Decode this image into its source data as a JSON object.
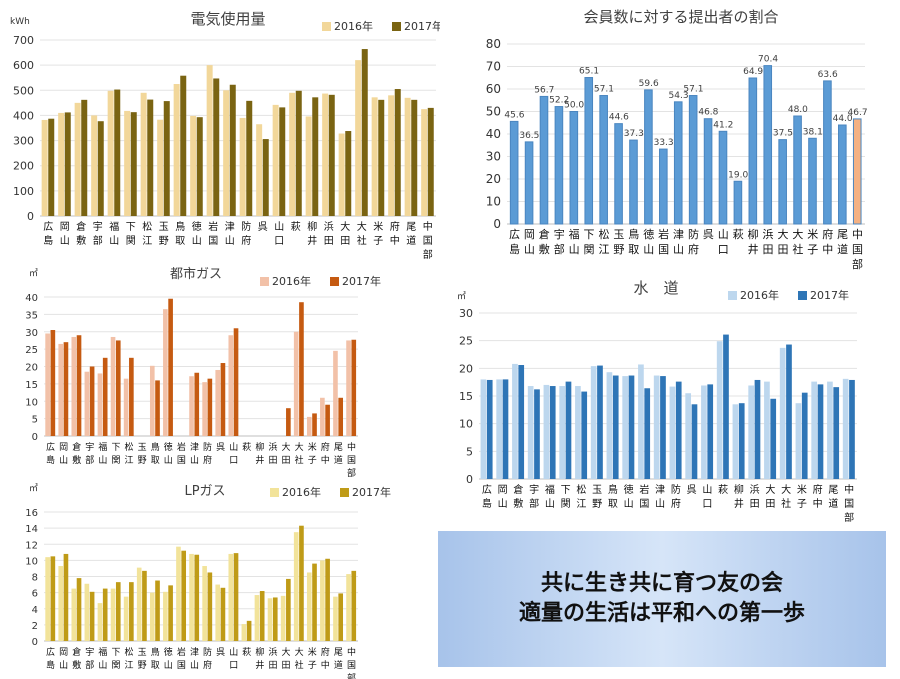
{
  "banner": {
    "line1": "共に生き共に育つ友の会",
    "line2": "適量の生活は平和への第一歩"
  },
  "chart_data": [
    {
      "id": "electricity",
      "type": "bar",
      "title": "電気使用量",
      "unit": "kWh",
      "ylim": [
        0,
        700
      ],
      "ystep": 100,
      "categories": [
        "広島",
        "岡山",
        "倉敷",
        "宇部",
        "福山",
        "下関",
        "松江",
        "玉野",
        "鳥取",
        "徳山",
        "岩国",
        "津山",
        "防府",
        "呉",
        "山口",
        "萩",
        "柳井",
        "浜田",
        "大田",
        "大社",
        "米子",
        "府中",
        "尾道",
        "中国部"
      ],
      "series": [
        {
          "name": "2016年",
          "color": "#f2d79a",
          "values": [
            382,
            410,
            450,
            400,
            498,
            418,
            490,
            383,
            525,
            398,
            600,
            500,
            390,
            365,
            442,
            490,
            396,
            487,
            328,
            620,
            472,
            480,
            470,
            425
          ]
        },
        {
          "name": "2017年",
          "color": "#7a6412",
          "values": [
            387,
            412,
            462,
            377,
            503,
            413,
            463,
            457,
            558,
            393,
            547,
            522,
            458,
            306,
            432,
            498,
            472,
            482,
            338,
            664,
            462,
            505,
            462,
            430
          ]
        }
      ]
    },
    {
      "id": "ratio",
      "type": "bar",
      "title": "会員数に対する提出者の割合",
      "ylim": [
        0,
        80
      ],
      "ystep": 10,
      "categories": [
        "広島",
        "岡山",
        "倉敷",
        "宇部",
        "福山",
        "下関",
        "松江",
        "玉野",
        "鳥取",
        "徳山",
        "岩国",
        "津山",
        "防府",
        "呉",
        "山口",
        "萩",
        "柳井",
        "浜田",
        "大田",
        "大社",
        "米子",
        "府中",
        "尾道",
        "中国部"
      ],
      "labels": [
        "45.6",
        "36.5",
        "56.7",
        "52.2",
        "50.0",
        "65.1",
        "57.1",
        "44.6",
        "37.3",
        "59.6",
        "33.3",
        "54.3",
        "57.1",
        "46.8",
        "41.2",
        "19.0",
        "64.9",
        "70.4",
        "37.5",
        "48.0",
        "38.1",
        "63.6",
        "44.0",
        "46.7"
      ],
      "series": [
        {
          "name": "",
          "color": "#5b9bd5",
          "highlight_color": "#f4b183",
          "values": [
            45.6,
            36.5,
            56.7,
            52.2,
            50.0,
            65.1,
            57.1,
            44.6,
            37.3,
            59.6,
            33.3,
            54.3,
            57.1,
            46.8,
            41.2,
            19.0,
            64.9,
            70.4,
            37.5,
            48.0,
            38.1,
            63.6,
            44.0,
            46.7
          ]
        }
      ]
    },
    {
      "id": "gas",
      "type": "bar",
      "title": "都市ガス",
      "unit": "㎥",
      "ylim": [
        0,
        40
      ],
      "ystep": 5,
      "categories": [
        "広島",
        "岡山",
        "倉敷",
        "宇部",
        "福山",
        "下関",
        "松江",
        "玉野",
        "鳥取",
        "徳山",
        "岩国",
        "津山",
        "防府",
        "呉",
        "山口",
        "萩",
        "柳井",
        "浜田",
        "大田",
        "大社",
        "米子",
        "府中",
        "尾道",
        "中国部"
      ],
      "series": [
        {
          "name": "2016年",
          "color": "#f2c1a8",
          "values": [
            29.5,
            26.5,
            28.5,
            18.5,
            18,
            28.5,
            16.5,
            0,
            20.2,
            36.5,
            0,
            17.2,
            15.5,
            19,
            29,
            0,
            0,
            0,
            0,
            30,
            5.5,
            11,
            24.5,
            27.5
          ]
        },
        {
          "name": "2017年",
          "color": "#c55a11",
          "values": [
            30.5,
            27,
            29,
            20,
            22.5,
            27.5,
            22.5,
            0,
            16,
            39.5,
            0,
            18.2,
            16.5,
            21,
            31,
            0,
            0,
            0,
            8,
            38.5,
            6.5,
            9,
            11,
            27.7
          ]
        }
      ]
    },
    {
      "id": "water",
      "type": "bar",
      "title": "水　道",
      "unit": "㎥",
      "ylim": [
        0,
        30
      ],
      "ystep": 5,
      "categories": [
        "広島",
        "岡山",
        "倉敷",
        "宇部",
        "福山",
        "下関",
        "松江",
        "玉野",
        "鳥取",
        "徳山",
        "岩国",
        "津山",
        "防府",
        "呉",
        "山口",
        "萩",
        "柳井",
        "浜田",
        "大田",
        "大社",
        "米子",
        "府中",
        "尾道",
        "中国部"
      ],
      "series": [
        {
          "name": "2016年",
          "color": "#bdd7ee",
          "values": [
            18,
            18,
            20.8,
            16.8,
            17,
            16.8,
            16.8,
            20.4,
            19.3,
            18.6,
            20.7,
            18.7,
            16.7,
            15.5,
            16.9,
            24.9,
            13.5,
            16.9,
            17.6,
            23.7,
            13.7,
            17.6,
            17.6,
            18.1
          ]
        },
        {
          "name": "2017年",
          "color": "#2e75b6",
          "values": [
            17.9,
            18,
            20.6,
            16.2,
            16.8,
            17.6,
            15.8,
            20.5,
            18.7,
            18.7,
            16.4,
            18.6,
            17.6,
            13.5,
            17.1,
            26.1,
            13.7,
            17.9,
            14.5,
            24.3,
            15.6,
            17.1,
            16.6,
            17.9
          ]
        }
      ]
    },
    {
      "id": "lpgas",
      "type": "bar",
      "title": "LPガス",
      "unit": "㎥",
      "ylim": [
        0,
        16
      ],
      "ystep": 2,
      "categories": [
        "広島",
        "岡山",
        "倉敷",
        "宇部",
        "福山",
        "下関",
        "松江",
        "玉野",
        "鳥取",
        "徳山",
        "岩国",
        "津山",
        "防府",
        "呉",
        "山口",
        "萩",
        "柳井",
        "浜田",
        "大田",
        "大社",
        "米子",
        "府中",
        "尾道",
        "中国部"
      ],
      "series": [
        {
          "name": "2016年",
          "color": "#f2e39a",
          "values": [
            10.4,
            9.3,
            6.5,
            7.1,
            4.7,
            6.5,
            5.5,
            9.1,
            6,
            6.1,
            11.7,
            10.8,
            9.3,
            7,
            10.8,
            2.1,
            5.7,
            5.3,
            5.6,
            13.5,
            8.5,
            10,
            5.5,
            8.3
          ]
        },
        {
          "name": "2017年",
          "color": "#bf9b17",
          "values": [
            10.5,
            10.8,
            7.8,
            6.1,
            6.5,
            7.3,
            7.3,
            8.7,
            7.5,
            6.9,
            11.2,
            10.7,
            8.5,
            6.6,
            10.9,
            2.5,
            6.2,
            5.4,
            7.7,
            14.3,
            9.6,
            10.2,
            5.9,
            8.7
          ]
        }
      ]
    }
  ]
}
